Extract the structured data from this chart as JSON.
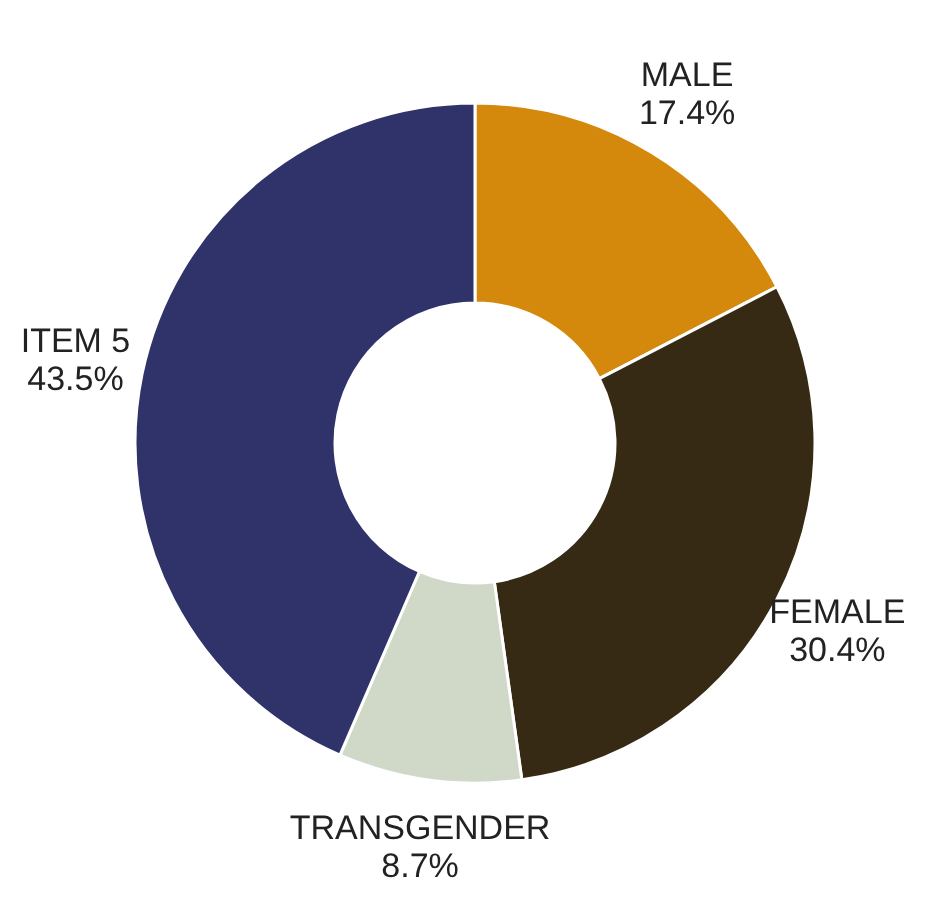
{
  "chart_data": {
    "type": "donut",
    "categories": [
      "MALE",
      "FEMALE",
      "TRANSGENDER",
      "ITEM 5"
    ],
    "values": [
      17.4,
      30.4,
      8.7,
      43.5
    ],
    "value_labels": [
      "17.4%",
      "30.4%",
      "8.7%",
      "43.5%"
    ],
    "colors": [
      "#d4890c",
      "#372a15",
      "#d0d9c8",
      "#30336a"
    ],
    "legend": false
  }
}
